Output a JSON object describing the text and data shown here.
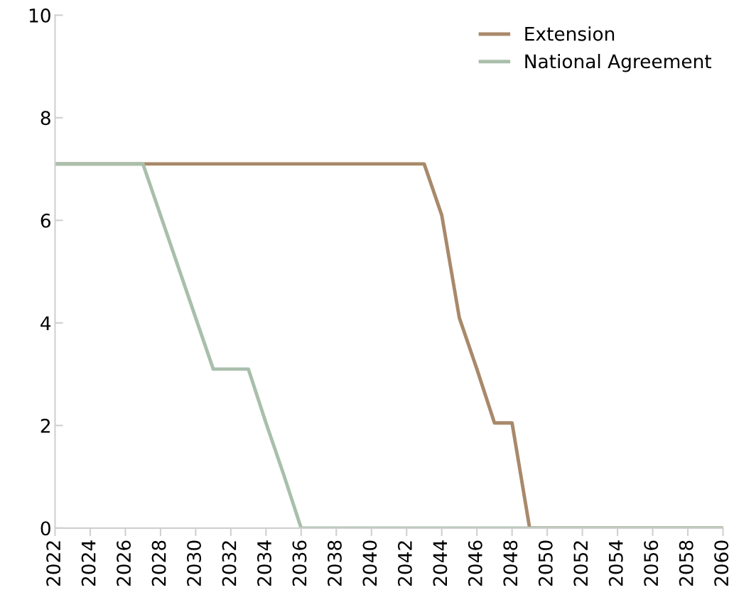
{
  "chart_data": {
    "type": "line",
    "x": [
      2022,
      2023,
      2024,
      2025,
      2026,
      2027,
      2028,
      2029,
      2030,
      2031,
      2032,
      2033,
      2034,
      2035,
      2036,
      2037,
      2038,
      2039,
      2040,
      2041,
      2042,
      2043,
      2044,
      2045,
      2046,
      2047,
      2048,
      2049,
      2050,
      2051,
      2052,
      2053,
      2054,
      2055,
      2056,
      2057,
      2058,
      2059,
      2060
    ],
    "series": [
      {
        "name": "Extension",
        "color": "#a8896a",
        "values": [
          7.1,
          7.1,
          7.1,
          7.1,
          7.1,
          7.1,
          7.1,
          7.1,
          7.1,
          7.1,
          7.1,
          7.1,
          7.1,
          7.1,
          7.1,
          7.1,
          7.1,
          7.1,
          7.1,
          7.1,
          7.1,
          7.1,
          6.1,
          4.1,
          3.1,
          2.05,
          2.05,
          0,
          0,
          0,
          0,
          0,
          0,
          0,
          0,
          0,
          0,
          0,
          0
        ]
      },
      {
        "name": "National Agreement",
        "color": "#a9bfab",
        "values": [
          7.1,
          7.1,
          7.1,
          7.1,
          7.1,
          7.1,
          6.1,
          5.1,
          4.1,
          3.1,
          3.1,
          3.1,
          2.05,
          1.05,
          0,
          0,
          0,
          0,
          0,
          0,
          0,
          0,
          0,
          0,
          0,
          0,
          0,
          0,
          0,
          0,
          0,
          0,
          0,
          0,
          0,
          0,
          0,
          0,
          0
        ]
      }
    ],
    "xlim": [
      2022,
      2060
    ],
    "xticks": [
      2022,
      2024,
      2026,
      2028,
      2030,
      2032,
      2034,
      2036,
      2038,
      2040,
      2042,
      2044,
      2046,
      2048,
      2050,
      2052,
      2054,
      2056,
      2058,
      2060
    ],
    "ylim": [
      0,
      10
    ],
    "yticks": [
      0,
      2,
      4,
      6,
      8,
      10
    ],
    "grid": false,
    "legend": "top right",
    "marker": "none",
    "line_style": "solid"
  }
}
